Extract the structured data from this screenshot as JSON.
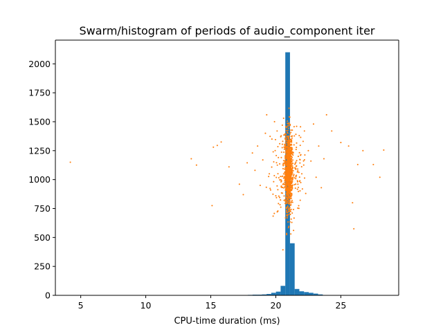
{
  "chart_data": {
    "type": "bar",
    "title": "Swarm/histogram of periods of audio_component iter",
    "xlabel": "CPU-time duration (ms)",
    "ylabel": "",
    "xlim": [
      3.05,
      29.45
    ],
    "ylim": [
      0,
      2205
    ],
    "x_ticks": [
      5,
      10,
      15,
      20,
      25
    ],
    "y_ticks": [
      0,
      250,
      500,
      750,
      1000,
      1250,
      1500,
      1750,
      2000
    ],
    "grid": false,
    "legend": "none",
    "colors": {
      "histogram": "#1f77b4",
      "swarm": "#ff7f0e"
    },
    "histogram": {
      "name": "",
      "bin_width": 0.36,
      "bins": [
        {
          "x": 17.85,
          "count": 4
        },
        {
          "x": 18.21,
          "count": 6
        },
        {
          "x": 18.57,
          "count": 6
        },
        {
          "x": 18.93,
          "count": 8
        },
        {
          "x": 19.29,
          "count": 12
        },
        {
          "x": 19.65,
          "count": 22
        },
        {
          "x": 20.01,
          "count": 32
        },
        {
          "x": 20.37,
          "count": 82
        },
        {
          "x": 20.73,
          "count": 2100
        },
        {
          "x": 21.09,
          "count": 450
        },
        {
          "x": 21.45,
          "count": 55
        },
        {
          "x": 21.81,
          "count": 35
        },
        {
          "x": 22.17,
          "count": 28
        },
        {
          "x": 22.53,
          "count": 22
        },
        {
          "x": 22.89,
          "count": 15
        },
        {
          "x": 23.25,
          "count": 8
        }
      ]
    },
    "swarm": {
      "name": "",
      "points": [
        [
          4.2,
          1150
        ],
        [
          13.5,
          1180
        ],
        [
          13.9,
          1125
        ],
        [
          15.1,
          775
        ],
        [
          15.2,
          1280
        ],
        [
          15.5,
          1295
        ],
        [
          15.8,
          1325
        ],
        [
          16.4,
          1110
        ],
        [
          17.2,
          960
        ],
        [
          17.5,
          870
        ],
        [
          17.8,
          1145
        ],
        [
          18.2,
          1230
        ],
        [
          18.4,
          1080
        ],
        [
          18.6,
          1290
        ],
        [
          18.8,
          950
        ],
        [
          19.0,
          1170
        ],
        [
          19.2,
          1400
        ],
        [
          19.3,
          1560
        ],
        [
          19.5,
          1050
        ],
        [
          19.6,
          910
        ],
        [
          19.7,
          1350
        ],
        [
          19.8,
          1240
        ],
        [
          19.9,
          1500
        ],
        [
          20.0,
          860
        ],
        [
          20.1,
          1420
        ],
        [
          20.2,
          1190
        ],
        [
          20.3,
          1310
        ],
        [
          20.4,
          980
        ],
        [
          20.5,
          1470
        ],
        [
          20.6,
          1530
        ],
        [
          21.4,
          1300
        ],
        [
          21.5,
          1140
        ],
        [
          21.6,
          1460
        ],
        [
          21.7,
          960
        ],
        [
          21.8,
          1380
        ],
        [
          21.9,
          1210
        ],
        [
          22.0,
          1050
        ],
        [
          22.1,
          1330
        ],
        [
          22.2,
          1420
        ],
        [
          22.3,
          880
        ],
        [
          22.5,
          1250
        ],
        [
          22.7,
          1160
        ],
        [
          22.9,
          1480
        ],
        [
          23.1,
          1020
        ],
        [
          23.3,
          1290
        ],
        [
          23.5,
          930
        ],
        [
          23.7,
          1180
        ],
        [
          23.9,
          1560
        ],
        [
          24.3,
          1420
        ],
        [
          25.0,
          1320
        ],
        [
          25.6,
          1290
        ],
        [
          25.9,
          800
        ],
        [
          26.0,
          575
        ],
        [
          26.3,
          1130
        ],
        [
          26.7,
          1250
        ],
        [
          27.5,
          1130
        ],
        [
          28.0,
          1020
        ],
        [
          28.3,
          1255
        ]
      ]
    }
  }
}
